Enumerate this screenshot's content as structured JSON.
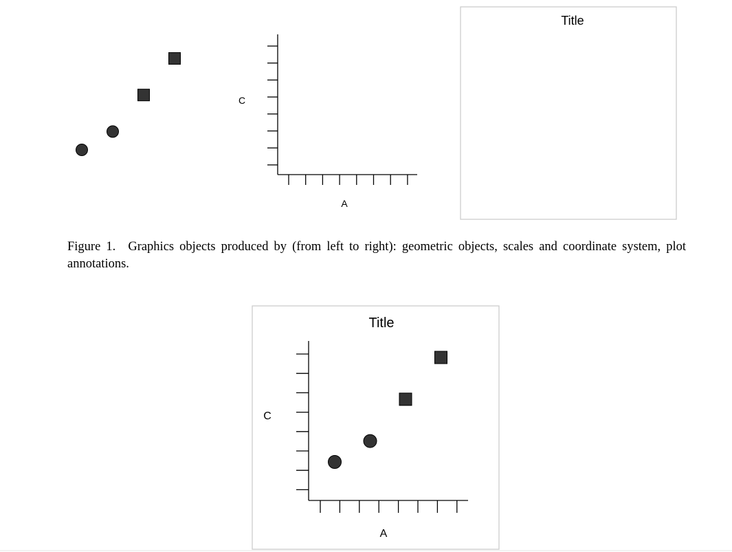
{
  "figure1": {
    "caption_label": "Figure 1.",
    "caption_text": "Graphics objects produced by (from left to right): geometric objects, scales and coordinate system, plot annotations.",
    "scales_panel": {
      "xlabel": "A",
      "ylabel": "C"
    },
    "annotations_panel": {
      "title": "Title"
    }
  },
  "figure2": {
    "title": "Title",
    "xlabel": "A",
    "ylabel": "C"
  },
  "chart_data": [
    {
      "type": "scatter",
      "description_hint": "geometric objects only",
      "series": [
        {
          "shape": "circle",
          "points": [
            [
              1,
              1
            ],
            [
              2,
              2
            ]
          ]
        },
        {
          "shape": "square",
          "points": [
            [
              3,
              4
            ],
            [
              4,
              6
            ]
          ]
        }
      ]
    },
    {
      "type": "scatter",
      "xlabel": "A",
      "ylabel": "C",
      "x_ticks": 8,
      "y_ticks": 8,
      "series": []
    },
    {
      "type": "scatter",
      "title": "Title",
      "xlabel": "A",
      "ylabel": "C",
      "x_ticks": 8,
      "y_ticks": 8,
      "series": [
        {
          "shape": "circle",
          "points": [
            [
              1,
              1
            ],
            [
              2,
              2
            ]
          ]
        },
        {
          "shape": "square",
          "points": [
            [
              3,
              4
            ],
            [
              4,
              6
            ]
          ]
        }
      ]
    }
  ]
}
